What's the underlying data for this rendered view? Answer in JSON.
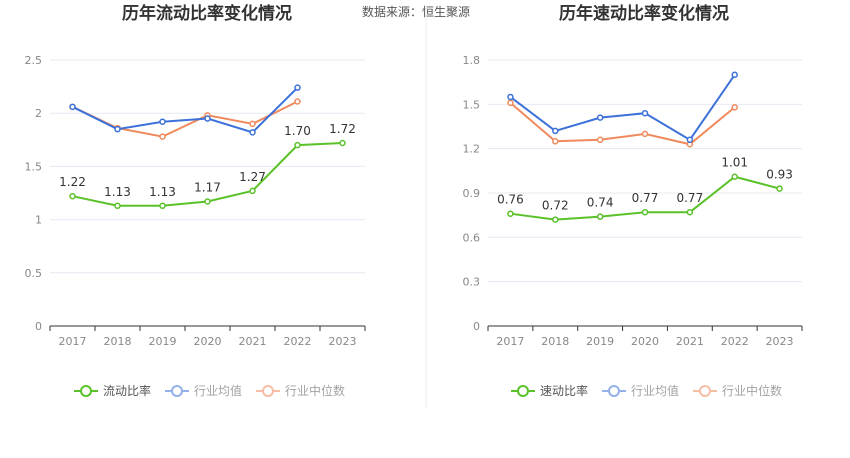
{
  "source": "数据来源：恒生聚源",
  "colors": {
    "main": "#5ac229",
    "avg": "#3c71d9",
    "median": "#f08a5d"
  },
  "chart_data": [
    {
      "type": "line",
      "title": "历年流动比率变化情况",
      "categories": [
        "2017",
        "2018",
        "2019",
        "2020",
        "2021",
        "2022",
        "2023"
      ],
      "ylim": [
        0,
        2.5
      ],
      "yticks": [
        0,
        0.5,
        1,
        1.5,
        2,
        2.5
      ],
      "ytick_labels": [
        "0",
        "0.5",
        "1",
        "1.5",
        "2",
        "2.5"
      ],
      "grid": true,
      "legend_position": "bottom",
      "series": [
        {
          "name": "流动比率",
          "key": "main",
          "values": [
            1.22,
            1.13,
            1.13,
            1.17,
            1.27,
            1.7,
            1.72
          ],
          "labels": [
            "1.22",
            "1.13",
            "1.13",
            "1.17",
            "1.27",
            "1.70",
            "1.72"
          ]
        },
        {
          "name": "行业均值",
          "key": "avg",
          "values": [
            2.06,
            1.85,
            1.92,
            1.95,
            1.82,
            2.24,
            null
          ]
        },
        {
          "name": "行业中位数",
          "key": "median",
          "values": [
            2.06,
            1.86,
            1.78,
            1.98,
            1.9,
            2.11,
            null
          ]
        }
      ]
    },
    {
      "type": "line",
      "title": "历年速动比率变化情况",
      "categories": [
        "2017",
        "2018",
        "2019",
        "2020",
        "2021",
        "2022",
        "2023"
      ],
      "ylim": [
        0,
        1.8
      ],
      "yticks": [
        0,
        0.3,
        0.6,
        0.9,
        1.2,
        1.5,
        1.8
      ],
      "ytick_labels": [
        "0",
        "0.3",
        "0.6",
        "0.9",
        "1.2",
        "1.5",
        "1.8"
      ],
      "grid": true,
      "legend_position": "bottom",
      "series": [
        {
          "name": "速动比率",
          "key": "main",
          "values": [
            0.76,
            0.72,
            0.74,
            0.77,
            0.77,
            1.01,
            0.93
          ],
          "labels": [
            "0.76",
            "0.72",
            "0.74",
            "0.77",
            "0.77",
            "1.01",
            "0.93"
          ]
        },
        {
          "name": "行业均值",
          "key": "avg",
          "values": [
            1.55,
            1.32,
            1.41,
            1.44,
            1.26,
            1.7,
            null
          ]
        },
        {
          "name": "行业中位数",
          "key": "median",
          "values": [
            1.51,
            1.25,
            1.26,
            1.3,
            1.23,
            1.48,
            null
          ]
        }
      ]
    }
  ]
}
